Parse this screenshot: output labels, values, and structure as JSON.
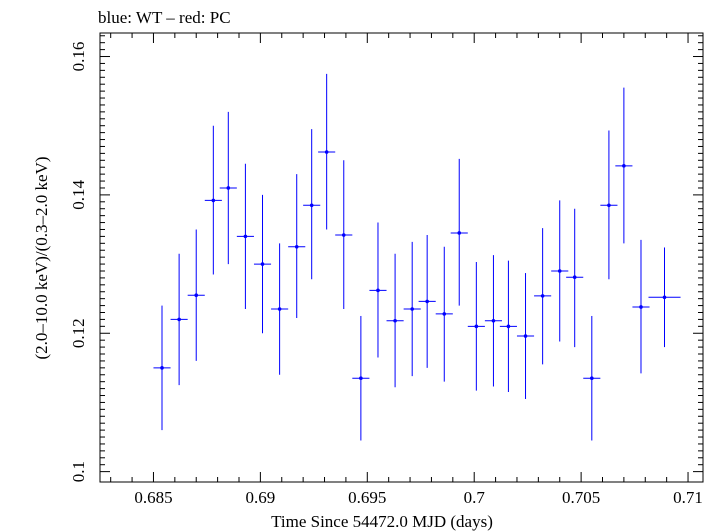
{
  "chart_data": {
    "type": "scatter",
    "title": "blue: WT – red: PC",
    "xlabel": "Time Since 54472.0 MJD (days)",
    "ylabel": "(2.0–10.0 keV)/(0.3–2.0 keV)",
    "xlim": [
      0.6825,
      0.7107
    ],
    "ylim": [
      0.0985,
      0.1634
    ],
    "x_ticks": [
      "0.685",
      "0.69",
      "0.695",
      "0.7",
      "0.705",
      "0.71"
    ],
    "x_tick_values": [
      0.685,
      0.69,
      0.695,
      0.7,
      0.705,
      0.71
    ],
    "y_ticks": [
      "0.1",
      "0.12",
      "0.14",
      "0.16"
    ],
    "y_tick_values": [
      0.1,
      0.12,
      0.14,
      0.16
    ],
    "colors": {
      "series": "#0000ff",
      "axes": "#000000"
    },
    "series": [
      {
        "color": "#0000ff",
        "points": [
          {
            "x": 0.6854,
            "xerr": 0.0004,
            "y": 0.115,
            "ylo": 0.106,
            "yhi": 0.124
          },
          {
            "x": 0.6862,
            "xerr": 0.0004,
            "y": 0.122,
            "ylo": 0.1125,
            "yhi": 0.1315
          },
          {
            "x": 0.687,
            "xerr": 0.0004,
            "y": 0.1255,
            "ylo": 0.116,
            "yhi": 0.135
          },
          {
            "x": 0.6878,
            "xerr": 0.0004,
            "y": 0.1392,
            "ylo": 0.1285,
            "yhi": 0.15
          },
          {
            "x": 0.6885,
            "xerr": 0.0004,
            "y": 0.141,
            "ylo": 0.13,
            "yhi": 0.152
          },
          {
            "x": 0.6893,
            "xerr": 0.0004,
            "y": 0.134,
            "ylo": 0.1235,
            "yhi": 0.1445
          },
          {
            "x": 0.6901,
            "xerr": 0.0004,
            "y": 0.13,
            "ylo": 0.12,
            "yhi": 0.14
          },
          {
            "x": 0.6909,
            "xerr": 0.0004,
            "y": 0.1235,
            "ylo": 0.114,
            "yhi": 0.133
          },
          {
            "x": 0.6917,
            "xerr": 0.0004,
            "y": 0.1325,
            "ylo": 0.1222,
            "yhi": 0.143
          },
          {
            "x": 0.6924,
            "xerr": 0.0004,
            "y": 0.1385,
            "ylo": 0.1278,
            "yhi": 0.1495
          },
          {
            "x": 0.6931,
            "xerr": 0.0004,
            "y": 0.1462,
            "ylo": 0.135,
            "yhi": 0.1575
          },
          {
            "x": 0.6939,
            "xerr": 0.0004,
            "y": 0.1342,
            "ylo": 0.1235,
            "yhi": 0.145
          },
          {
            "x": 0.6947,
            "xerr": 0.0004,
            "y": 0.1135,
            "ylo": 0.1045,
            "yhi": 0.1225
          },
          {
            "x": 0.6955,
            "xerr": 0.0004,
            "y": 0.1262,
            "ylo": 0.1165,
            "yhi": 0.136
          },
          {
            "x": 0.6963,
            "xerr": 0.0004,
            "y": 0.1218,
            "ylo": 0.1122,
            "yhi": 0.1315
          },
          {
            "x": 0.6971,
            "xerr": 0.0004,
            "y": 0.1235,
            "ylo": 0.1138,
            "yhi": 0.1332
          },
          {
            "x": 0.6978,
            "xerr": 0.0004,
            "y": 0.1246,
            "ylo": 0.115,
            "yhi": 0.1342
          },
          {
            "x": 0.6986,
            "xerr": 0.0004,
            "y": 0.1228,
            "ylo": 0.113,
            "yhi": 0.1325
          },
          {
            "x": 0.6993,
            "xerr": 0.0004,
            "y": 0.1345,
            "ylo": 0.124,
            "yhi": 0.1452
          },
          {
            "x": 0.7001,
            "xerr": 0.0004,
            "y": 0.121,
            "ylo": 0.1117,
            "yhi": 0.1303
          },
          {
            "x": 0.7009,
            "xerr": 0.0004,
            "y": 0.1218,
            "ylo": 0.1123,
            "yhi": 0.1313
          },
          {
            "x": 0.7016,
            "xerr": 0.0004,
            "y": 0.121,
            "ylo": 0.1115,
            "yhi": 0.1305
          },
          {
            "x": 0.7024,
            "xerr": 0.0004,
            "y": 0.1196,
            "ylo": 0.1105,
            "yhi": 0.1287
          },
          {
            "x": 0.7032,
            "xerr": 0.0004,
            "y": 0.1254,
            "ylo": 0.1155,
            "yhi": 0.1352
          },
          {
            "x": 0.704,
            "xerr": 0.0004,
            "y": 0.129,
            "ylo": 0.1188,
            "yhi": 0.1392
          },
          {
            "x": 0.7047,
            "xerr": 0.0004,
            "y": 0.1281,
            "ylo": 0.118,
            "yhi": 0.138
          },
          {
            "x": 0.7055,
            "xerr": 0.0004,
            "y": 0.1135,
            "ylo": 0.1045,
            "yhi": 0.1225
          },
          {
            "x": 0.7063,
            "xerr": 0.0004,
            "y": 0.1385,
            "ylo": 0.1278,
            "yhi": 0.1493
          },
          {
            "x": 0.707,
            "xerr": 0.0004,
            "y": 0.1442,
            "ylo": 0.133,
            "yhi": 0.1555
          },
          {
            "x": 0.7078,
            "xerr": 0.0004,
            "y": 0.1238,
            "ylo": 0.1142,
            "yhi": 0.1335
          },
          {
            "x": 0.7089,
            "xerr": 0.00075,
            "y": 0.1252,
            "ylo": 0.118,
            "yhi": 0.1324
          }
        ]
      }
    ]
  }
}
